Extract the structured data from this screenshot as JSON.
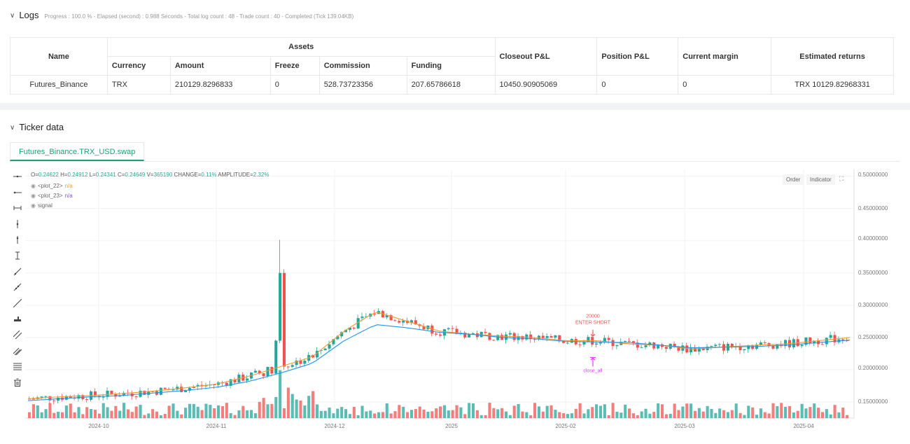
{
  "logs": {
    "title": "Logs",
    "meta": "Progress : 100.0 % - Elapsed (second) : 0.988  Seconds - Total log count : 48 - Trade count : 40 - Completed (Tick 139.04KB)",
    "table": {
      "h_name": "Name",
      "h_assets": "Assets",
      "h_closeout": "Closeout P&L",
      "h_position": "Position P&L",
      "h_margin": "Current margin",
      "h_returns": "Estimated returns",
      "h_currency": "Currency",
      "h_amount": "Amount",
      "h_freeze": "Freeze",
      "h_commission": "Commission",
      "h_funding": "Funding",
      "row": {
        "name": "Futures_Binance",
        "currency": "TRX",
        "amount": "210129.8296833",
        "freeze": "0",
        "commission": "528.73723356",
        "funding": "207.65786618",
        "closeout": "10450.90905069",
        "position": "0",
        "margin": "0",
        "returns": "TRX 10129.82968331"
      }
    }
  },
  "ticker": {
    "title": "Ticker data",
    "tab": "Futures_Binance.TRX_USD.swap",
    "buttons": {
      "order": "Order",
      "indicator": "Indicator"
    },
    "ohlc": {
      "o_label": "O=",
      "o": "0.24622",
      "h_label": "H=",
      "h": "0.24912",
      "l_label": "L=",
      "l": "0.24341",
      "c_label": "C=",
      "c": "0.24649",
      "v_label": "V=",
      "v": "365190",
      "ch_label": "CHANGE=",
      "change": "0.11%",
      "amp_label": "AMPLITUDE=",
      "amplitude": "2.32%"
    },
    "legend": [
      {
        "name": "<plot_22>",
        "value": "n/a",
        "color": "#f29a2e"
      },
      {
        "name": "<plot_23>",
        "value": "n/a",
        "color": "#7e57c2"
      },
      {
        "name": "signal",
        "value": "",
        "color": "#666666"
      }
    ],
    "annotations": {
      "entry_qty": "20000",
      "entry_label": "ENTER SHORT",
      "exit_label": "close_all"
    }
  },
  "chart_data": {
    "type": "candlestick",
    "y_ticks": [
      "0.50000000",
      "0.45000000",
      "0.40000000",
      "0.35000000",
      "0.30000000",
      "0.25000000",
      "0.20000000",
      "0.15000000"
    ],
    "x_ticks": [
      "2024-10",
      "2024-11",
      "2024-12",
      "2025",
      "2025-02",
      "2025-03",
      "2025-04"
    ],
    "ylim": [
      0.125,
      0.505
    ],
    "colors": {
      "up": "#26a69a",
      "down": "#ef5350",
      "fast_line": "#f29a2e",
      "slow_line": "#2196f3",
      "signal": "#e040fb"
    },
    "series": [
      {
        "name": "<plot_22>",
        "values": [
          0.155,
          0.158,
          0.16,
          0.163,
          0.167,
          0.172,
          0.178,
          0.19,
          0.205,
          0.22,
          0.26,
          0.29,
          0.275,
          0.26,
          0.255,
          0.252,
          0.25,
          0.245,
          0.245,
          0.24,
          0.238,
          0.232,
          0.235,
          0.238,
          0.24,
          0.245,
          0.25
        ]
      },
      {
        "name": "<plot_23>",
        "values": [
          0.152,
          0.155,
          0.158,
          0.16,
          0.164,
          0.168,
          0.173,
          0.182,
          0.195,
          0.21,
          0.245,
          0.27,
          0.265,
          0.258,
          0.255,
          0.25,
          0.248,
          0.244,
          0.243,
          0.242,
          0.238,
          0.234,
          0.235,
          0.236,
          0.238,
          0.242,
          0.246
        ]
      }
    ],
    "signals": [
      {
        "type": "ENTER SHORT",
        "qty": "20000"
      },
      {
        "type": "close_all"
      }
    ]
  }
}
